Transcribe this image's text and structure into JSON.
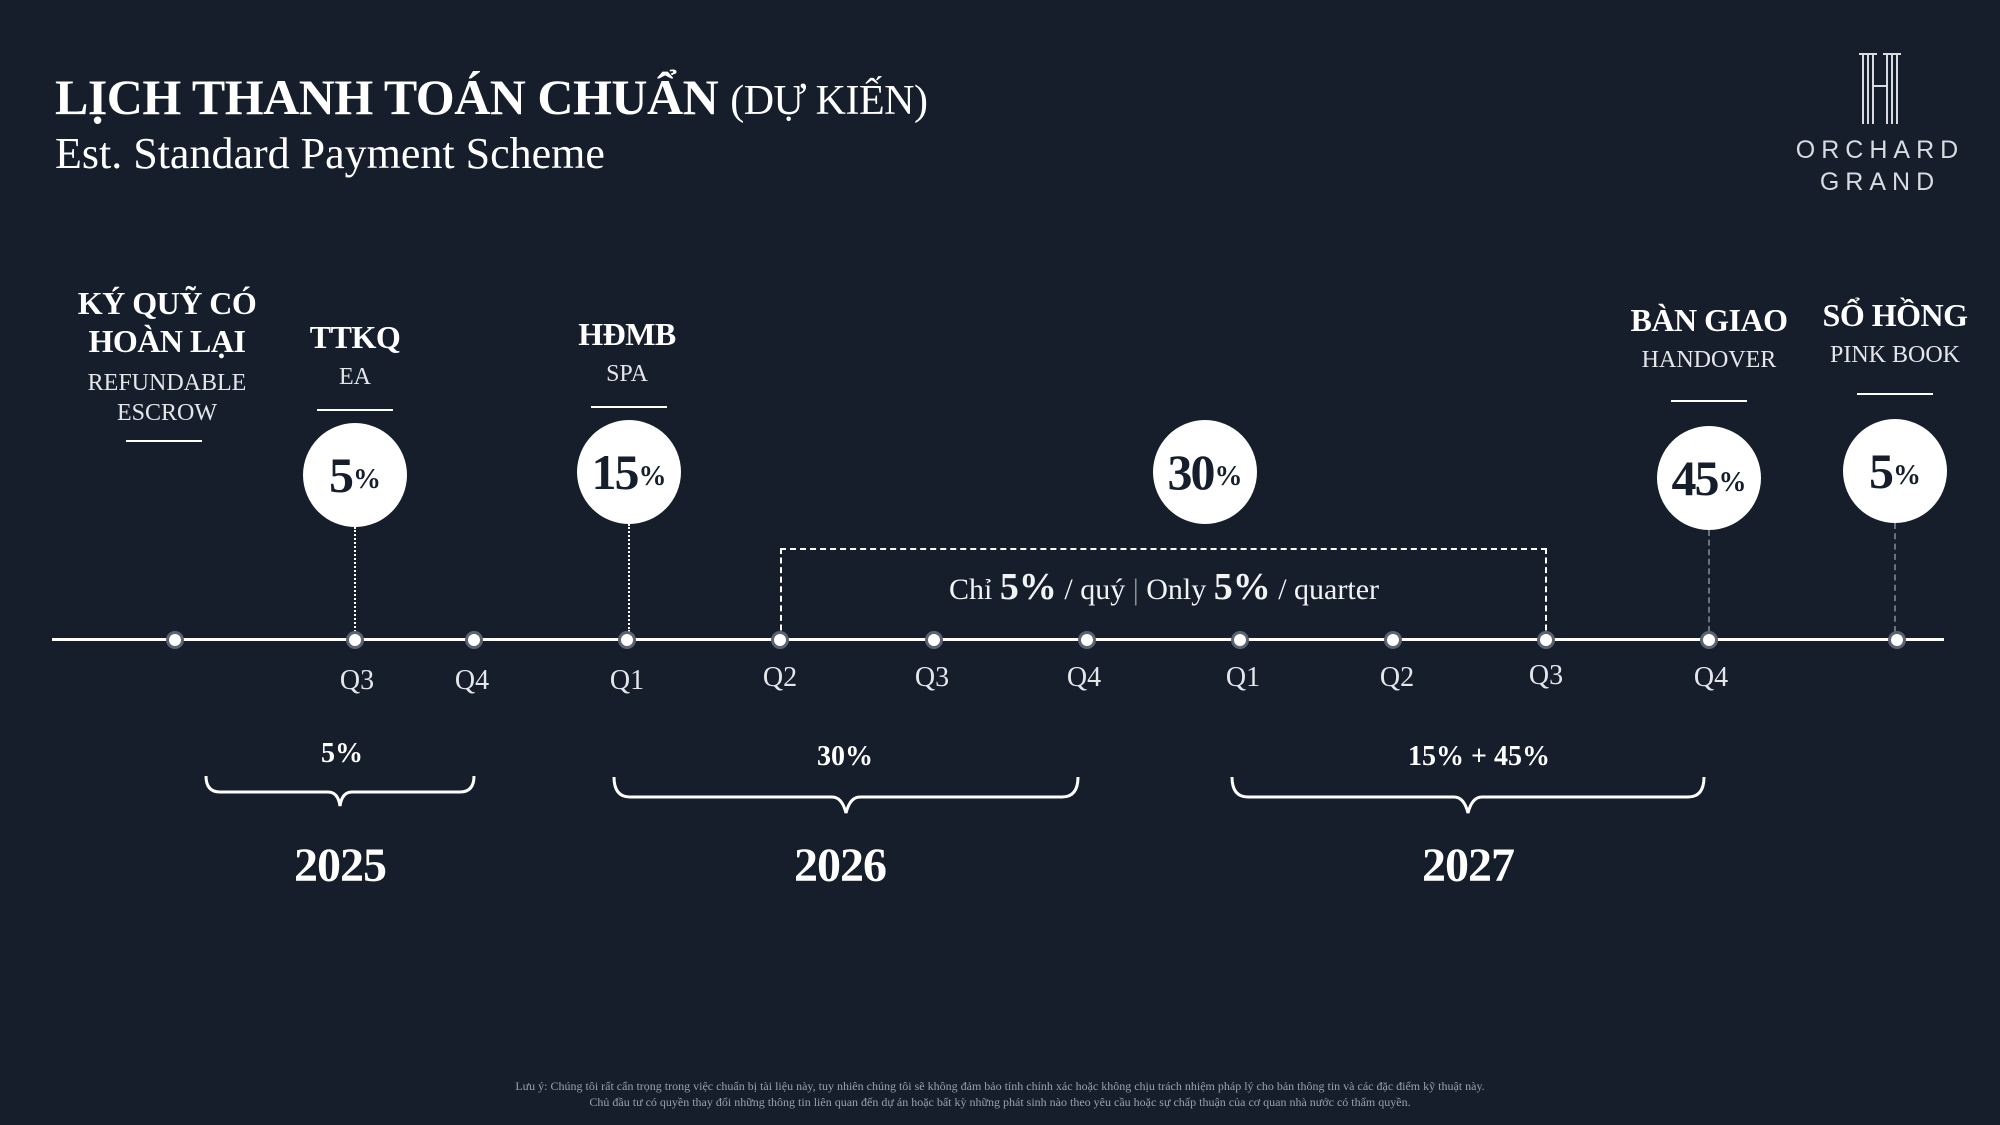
{
  "header": {
    "title_vi": "LỊCH THANH TOÁN CHUẨN",
    "title_vi_suffix": "(DỰ KIẾN)",
    "title_en": "Est. Standard Payment Scheme"
  },
  "logo": {
    "line1": "ORCHARD",
    "line2": "GRAND"
  },
  "milestones": [
    {
      "id": "escrow",
      "label_vi_1": "KÝ QUỸ CÓ",
      "label_vi_2": "HOÀN LẠI",
      "label_en_1": "REFUNDABLE",
      "label_en_2": "ESCROW"
    },
    {
      "id": "ea",
      "label_vi": "TTKQ",
      "label_en": "EA",
      "pct_num": "5",
      "pct_sym": "%"
    },
    {
      "id": "spa",
      "label_vi": "HĐMB",
      "label_en": "SPA",
      "pct_num": "15",
      "pct_sym": "%"
    },
    {
      "id": "quarterly",
      "pct_num": "30",
      "pct_sym": "%"
    },
    {
      "id": "handover",
      "label_vi": "BÀN GIAO",
      "label_en": "HANDOVER",
      "pct_num": "45",
      "pct_sym": "%"
    },
    {
      "id": "pinkbook",
      "label_vi": "SỔ HỒNG",
      "label_en": "PINK BOOK",
      "pct_num": "5",
      "pct_sym": "%"
    }
  ],
  "quarters": [
    "Q3",
    "Q4",
    "Q1",
    "Q2",
    "Q3",
    "Q4",
    "Q1",
    "Q2",
    "Q3",
    "Q4"
  ],
  "quarterly_note": {
    "vi_prefix": "Chỉ",
    "vi_pct": "5%",
    "vi_suffix": "/ quý",
    "separator": "|",
    "en_prefix": "Only",
    "en_pct": "5%",
    "en_suffix": "/ quarter"
  },
  "years": [
    {
      "year": "2025",
      "total": "5%"
    },
    {
      "year": "2026",
      "total": "30%"
    },
    {
      "year": "2027",
      "total": "15% + 45%"
    }
  ],
  "disclaimer": {
    "line1": "Lưu ý: Chúng tôi rất cẩn trọng trong việc chuẩn bị tài liệu này, tuy nhiên chúng tôi sẽ không đảm bảo tính chính xác hoặc không chịu trách nhiệm pháp lý cho bản thông tin và các đặc điểm kỹ thuật này.",
    "line2": "Chủ đầu tư có quyền thay đổi những thông tin liên quan đến dự án hoặc bất kỳ những phát sinh nào theo yêu cầu hoặc sự chấp thuận của cơ quan nhà nước có thẩm quyền."
  }
}
